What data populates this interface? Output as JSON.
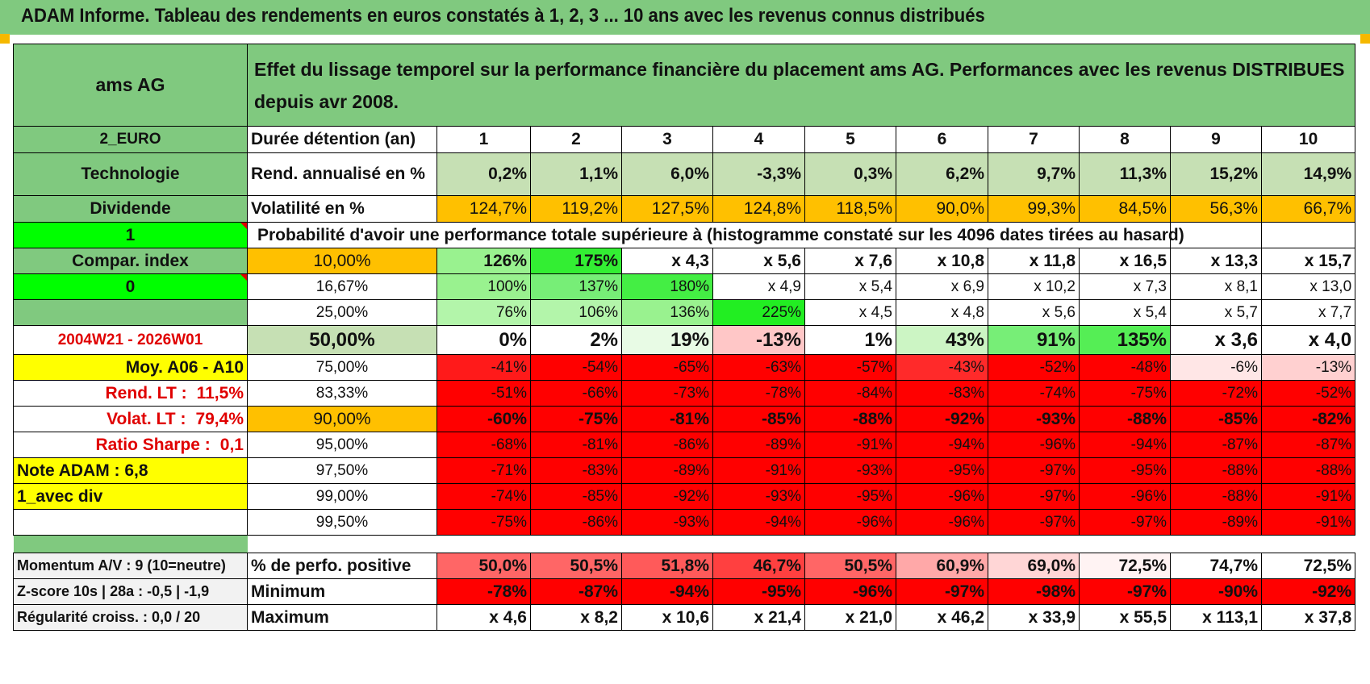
{
  "title": "ADAM Informe. Tableau des rendements en euros constatés à 1, 2, 3 ... 10 ans avec les revenus connus distribués",
  "header": {
    "name": "ams AG",
    "description": "Effet du lissage temporel sur la performance financière du placement ams AG. Performances avec les revenus DISTRIBUES depuis avr 2008."
  },
  "durations_label": "Durée détention (an)",
  "durations": [
    "1",
    "2",
    "3",
    "4",
    "5",
    "6",
    "7",
    "8",
    "9",
    "10"
  ],
  "left": {
    "currency": "2_EURO",
    "sector": "Technologie",
    "type": "Dividende",
    "flag1": "1",
    "compar": "Compar. index",
    "flag0": "0",
    "period": "2004W21 - 2026W01",
    "moy": "Moy. A06 - A10",
    "rend_lt_label": "Rend. LT :",
    "rend_lt_value": "11,5%",
    "volat_lt_label": "Volat. LT :",
    "volat_lt_value": "79,4%",
    "sharpe_label": "Ratio Sharpe :",
    "sharpe_value": "0,1",
    "note": "Note ADAM : 6,8",
    "div_mode": "1_avec div"
  },
  "rend": {
    "label": "Rend. annualisé en %",
    "values": [
      "0,2%",
      "1,1%",
      "6,0%",
      "-3,3%",
      "0,3%",
      "6,2%",
      "9,7%",
      "11,3%",
      "15,2%",
      "14,9%"
    ]
  },
  "volat": {
    "label": "Volatilité en %",
    "values": [
      "124,7%",
      "119,2%",
      "127,5%",
      "124,8%",
      "118,5%",
      "90,0%",
      "99,3%",
      "84,5%",
      "56,3%",
      "66,7%"
    ]
  },
  "prob_title": "Probabilité d'avoir une performance totale supérieure à (histogramme constaté sur les 4096 dates tirées au hasard)",
  "quantiles": [
    {
      "p": "10,00%",
      "values": [
        "126%",
        "175%",
        "x 4,3",
        "x 5,6",
        "x 7,6",
        "x 10,8",
        "x 11,8",
        "x 16,5",
        "x 13,3",
        "x 15,7"
      ]
    },
    {
      "p": "16,67%",
      "values": [
        "100%",
        "137%",
        "180%",
        "x 4,9",
        "x 5,4",
        "x 6,9",
        "x 10,2",
        "x 7,3",
        "x 8,1",
        "x 13,0"
      ]
    },
    {
      "p": "25,00%",
      "values": [
        "76%",
        "106%",
        "136%",
        "225%",
        "x 4,5",
        "x 4,8",
        "x 5,6",
        "x 5,4",
        "x 5,7",
        "x 7,7"
      ]
    },
    {
      "p": "50,00%",
      "values": [
        "0%",
        "2%",
        "19%",
        "-13%",
        "1%",
        "43%",
        "91%",
        "135%",
        "x 3,6",
        "x 4,0"
      ]
    },
    {
      "p": "75,00%",
      "values": [
        "-41%",
        "-54%",
        "-65%",
        "-63%",
        "-57%",
        "-43%",
        "-52%",
        "-48%",
        "-6%",
        "-13%"
      ]
    },
    {
      "p": "83,33%",
      "values": [
        "-51%",
        "-66%",
        "-73%",
        "-78%",
        "-84%",
        "-83%",
        "-74%",
        "-75%",
        "-72%",
        "-52%"
      ]
    },
    {
      "p": "90,00%",
      "values": [
        "-60%",
        "-75%",
        "-81%",
        "-85%",
        "-88%",
        "-92%",
        "-93%",
        "-88%",
        "-85%",
        "-82%"
      ]
    },
    {
      "p": "95,00%",
      "values": [
        "-68%",
        "-81%",
        "-86%",
        "-89%",
        "-91%",
        "-94%",
        "-96%",
        "-94%",
        "-87%",
        "-87%"
      ]
    },
    {
      "p": "97,50%",
      "values": [
        "-71%",
        "-83%",
        "-89%",
        "-91%",
        "-93%",
        "-95%",
        "-97%",
        "-95%",
        "-88%",
        "-88%"
      ]
    },
    {
      "p": "99,00%",
      "values": [
        "-74%",
        "-85%",
        "-92%",
        "-93%",
        "-95%",
        "-96%",
        "-97%",
        "-96%",
        "-88%",
        "-91%"
      ]
    },
    {
      "p": "99,50%",
      "values": [
        "-75%",
        "-86%",
        "-93%",
        "-94%",
        "-96%",
        "-96%",
        "-97%",
        "-97%",
        "-89%",
        "-91%"
      ]
    }
  ],
  "bottom": [
    {
      "left": "Momentum A/V : 9 (10=neutre)",
      "label": "% de perfo. positive",
      "values": [
        "50,0%",
        "50,5%",
        "51,8%",
        "46,7%",
        "50,5%",
        "60,9%",
        "69,0%",
        "72,5%",
        "74,7%",
        "72,5%"
      ]
    },
    {
      "left": "Z-score 10s | 28a : -0,5 | -1,9",
      "label": "Minimum",
      "values": [
        "-78%",
        "-87%",
        "-94%",
        "-95%",
        "-96%",
        "-97%",
        "-98%",
        "-97%",
        "-90%",
        "-92%"
      ]
    },
    {
      "left": "Régularité croiss. : 0,0 / 20",
      "label": "Maximum",
      "values": [
        "x 4,6",
        "x 8,2",
        "x 10,6",
        "x 21,4",
        "x 21,0",
        "x 46,2",
        "x 33,9",
        "x 55,5",
        "x 113,1",
        "x 37,8"
      ]
    }
  ],
  "colors": {
    "header_green": "#80c97f",
    "light_green": "#c6e0b4",
    "orange": "#ffc000",
    "yellow": "#ffff00",
    "bright_green": "#00ff00",
    "red": "#ff0000",
    "red_text": "#e00000"
  }
}
